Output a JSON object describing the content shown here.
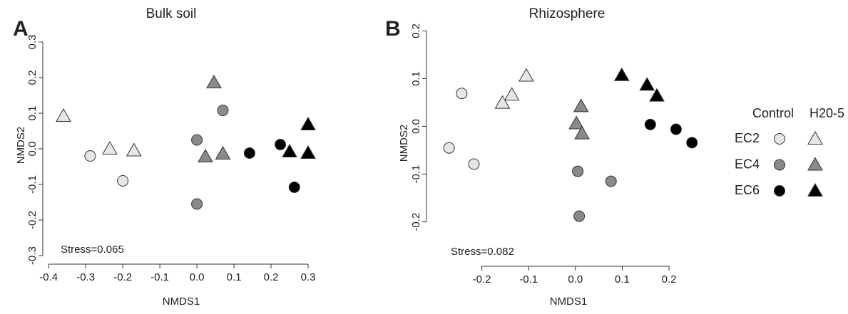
{
  "chart_data": [
    {
      "type": "scatter",
      "panel_label": "A",
      "title": "Bulk soil",
      "x_label": "NMDS1",
      "y_label": "NMDS2",
      "annotation": "Stress=0.065",
      "xlim": [
        -0.41,
        0.325
      ],
      "ylim": [
        -0.32,
        0.34
      ],
      "xticks": [
        -0.4,
        -0.3,
        -0.2,
        -0.1,
        {
          "value": 0,
          "label": "0.0"
        },
        0.1,
        0.2,
        0.3
      ],
      "yticks": [
        -0.3,
        -0.2,
        -0.1,
        {
          "value": 0,
          "label": "0.0"
        },
        0.1,
        0.2,
        0.3
      ],
      "series": [
        {
          "color": "#e6e6e6",
          "marker": "circle",
          "x": [
            -0.288,
            -0.2
          ],
          "values": [
            -0.02,
            -0.09
          ]
        },
        {
          "color": "#e6e6e6",
          "marker": "triangle",
          "x": [
            -0.36,
            -0.235,
            -0.17
          ],
          "values": [
            0.092,
            0.0,
            -0.005
          ]
        },
        {
          "color": "#8a8a8a",
          "marker": "circle",
          "x": [
            0.0,
            0.07,
            0.0
          ],
          "values": [
            0.025,
            0.108,
            -0.155
          ]
        },
        {
          "color": "#8a8a8a",
          "marker": "triangle",
          "x": [
            0.046,
            0.023,
            0.07
          ],
          "values": [
            0.186,
            -0.022,
            -0.014
          ]
        },
        {
          "color": "#000000",
          "marker": "circle",
          "x": [
            0.142,
            0.225,
            0.263
          ],
          "values": [
            -0.012,
            0.012,
            -0.108
          ]
        },
        {
          "color": "#000000",
          "marker": "triangle",
          "x": [
            0.25,
            0.3,
            0.3
          ],
          "values": [
            -0.008,
            0.068,
            -0.012
          ]
        }
      ]
    },
    {
      "type": "scatter",
      "panel_label": "B",
      "title": "Rhizosphere",
      "x_label": "NMDS1",
      "y_label": "NMDS2",
      "annotation": "Stress=0.082",
      "xlim": [
        -0.3,
        0.27
      ],
      "ylim": [
        -0.29,
        0.22
      ],
      "xticks": [
        -0.2,
        -0.1,
        {
          "value": 0,
          "label": "0.0"
        },
        0.1,
        0.2
      ],
      "yticks": [
        -0.2,
        -0.1,
        {
          "value": 0,
          "label": "0.0"
        },
        0.1,
        0.2
      ],
      "series": [
        {
          "color": "#e6e6e6",
          "marker": "circle",
          "x": [
            -0.243,
            -0.27,
            -0.217
          ],
          "values": [
            0.069,
            -0.045,
            -0.079
          ]
        },
        {
          "color": "#e6e6e6",
          "marker": "triangle",
          "x": [
            -0.105,
            -0.136,
            -0.156
          ],
          "values": [
            0.106,
            0.066,
            0.049
          ]
        },
        {
          "color": "#8a8a8a",
          "marker": "circle",
          "x": [
            0.005,
            0.008,
            0.076
          ],
          "values": [
            -0.094,
            -0.188,
            -0.115
          ]
        },
        {
          "color": "#8a8a8a",
          "marker": "triangle",
          "x": [
            0.012,
            0.002,
            0.014
          ],
          "values": [
            0.042,
            0.006,
            -0.015
          ]
        },
        {
          "color": "#000000",
          "marker": "circle",
          "x": [
            0.16,
            0.215,
            0.249
          ],
          "values": [
            0.004,
            -0.006,
            -0.034
          ]
        },
        {
          "color": "#000000",
          "marker": "triangle",
          "x": [
            0.099,
            0.153,
            0.174
          ],
          "values": [
            0.107,
            0.087,
            0.064
          ]
        }
      ]
    }
  ],
  "legend": {
    "columns": [
      "Control",
      "H20-5"
    ],
    "markers": [
      "circle",
      "triangle"
    ],
    "rows": [
      "EC2",
      "EC4",
      "EC6"
    ],
    "colors": [
      "#e6e6e6",
      "#8a8a8a",
      "#000000"
    ]
  }
}
